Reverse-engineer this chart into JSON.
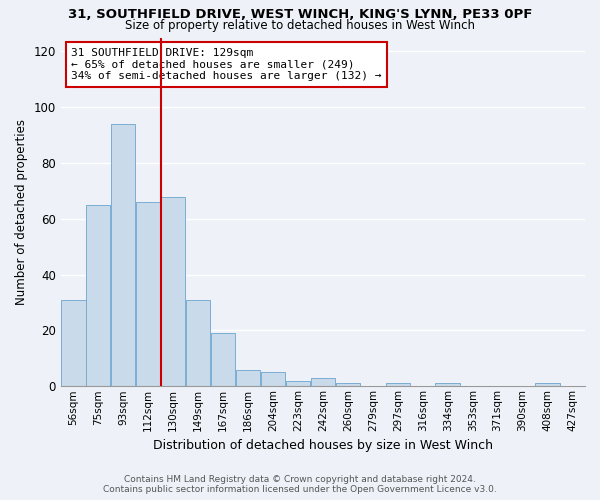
{
  "title1": "31, SOUTHFIELD DRIVE, WEST WINCH, KING'S LYNN, PE33 0PF",
  "title2": "Size of property relative to detached houses in West Winch",
  "xlabel": "Distribution of detached houses by size in West Winch",
  "ylabel": "Number of detached properties",
  "bar_labels": [
    "56sqm",
    "75sqm",
    "93sqm",
    "112sqm",
    "130sqm",
    "149sqm",
    "167sqm",
    "186sqm",
    "204sqm",
    "223sqm",
    "242sqm",
    "260sqm",
    "279sqm",
    "297sqm",
    "316sqm",
    "334sqm",
    "353sqm",
    "371sqm",
    "390sqm",
    "408sqm",
    "427sqm"
  ],
  "bar_values": [
    31,
    65,
    94,
    66,
    68,
    31,
    19,
    6,
    5,
    2,
    3,
    1,
    0,
    1,
    0,
    1,
    0,
    0,
    0,
    1,
    0
  ],
  "bar_color": "#c9daea",
  "bar_edge_color": "#7aadd4",
  "vline_color": "#cc0000",
  "annotation_title": "31 SOUTHFIELD DRIVE: 129sqm",
  "annotation_line1": "← 65% of detached houses are smaller (249)",
  "annotation_line2": "34% of semi-detached houses are larger (132) →",
  "annotation_box_color": "#ffffff",
  "annotation_box_edge": "#cc0000",
  "ylim": [
    0,
    125
  ],
  "yticks": [
    0,
    20,
    40,
    60,
    80,
    100,
    120
  ],
  "footer1": "Contains HM Land Registry data © Crown copyright and database right 2024.",
  "footer2": "Contains public sector information licensed under the Open Government Licence v3.0.",
  "bg_color": "#eef2f8"
}
